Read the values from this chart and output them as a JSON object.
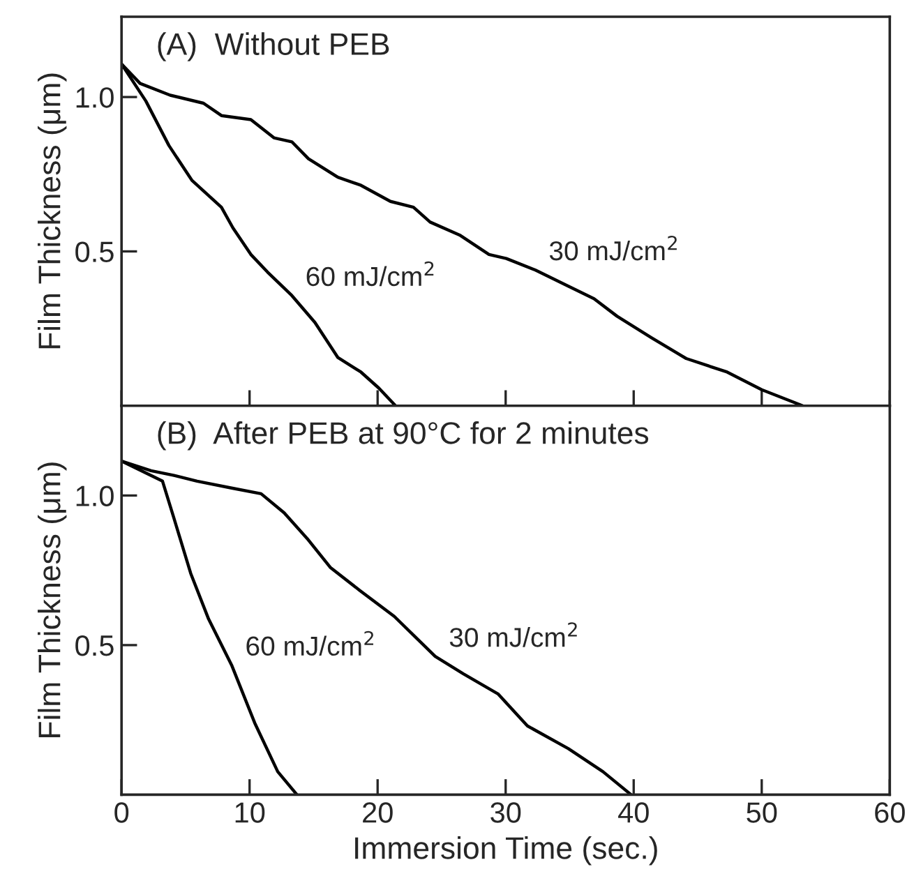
{
  "chart_data": [
    {
      "type": "line",
      "title": "(A)  Without PEB",
      "ylabel": "Film Thickness (μm)",
      "xlim": [
        0,
        60
      ],
      "ylim": [
        0,
        1.26
      ],
      "xticks": [
        0,
        10,
        20,
        30,
        40,
        50,
        60
      ],
      "yticks": [
        0.5,
        {
          "value": 1.0,
          "label": "1.0"
        }
      ],
      "tick_labels": "y",
      "grid": false,
      "legend": false,
      "series": [
        {
          "name": "30 mJ/cm$^{2}$",
          "color": "#000000",
          "x": [
            0,
            1.45,
            3.8,
            6.4,
            7.8,
            10.1,
            11.9,
            13.3,
            14.6,
            16.9,
            18.7,
            21.0,
            22.8,
            24.1,
            26.4,
            28.7,
            30.05,
            32.3,
            35.0,
            36.9,
            38.7,
            41.4,
            44.1,
            47.3,
            50.0,
            53.2
          ],
          "values": [
            1.107,
            1.044,
            1.006,
            0.98,
            0.94,
            0.927,
            0.868,
            0.855,
            0.8,
            0.74,
            0.714,
            0.662,
            0.643,
            0.595,
            0.553,
            0.49,
            0.477,
            0.44,
            0.385,
            0.347,
            0.29,
            0.22,
            0.153,
            0.109,
            0.052,
            0
          ]
        },
        {
          "name": "60 mJ/cm$^{2}$",
          "color": "#000000",
          "x": [
            0,
            1.9,
            3.7,
            5.5,
            7.8,
            8.7,
            10.1,
            11.4,
            13.3,
            15.1,
            16.9,
            18.7,
            20.1,
            21.4
          ],
          "values": [
            1.107,
            0.987,
            0.843,
            0.73,
            0.643,
            0.576,
            0.49,
            0.433,
            0.357,
            0.27,
            0.156,
            0.109,
            0.057,
            0
          ]
        }
      ]
    },
    {
      "type": "line",
      "title": "(B)  After PEB at 90°C for 2 minutes",
      "xlabel": "Immersion Time (sec.)",
      "ylabel": "Film Thickness (μm)",
      "xlim": [
        0,
        60
      ],
      "ylim": [
        0,
        1.3
      ],
      "xticks": [
        0,
        10,
        20,
        30,
        40,
        50,
        60
      ],
      "yticks": [
        0.5,
        {
          "value": 1.0,
          "label": "1.0"
        }
      ],
      "grid": false,
      "legend": false,
      "series": [
        {
          "name": "30 mJ/cm$^{2}$",
          "color": "#000000",
          "x": [
            0,
            2.3,
            4.1,
            5.9,
            8.6,
            10.9,
            12.7,
            14.5,
            16.3,
            18.6,
            21.3,
            24.5,
            26.7,
            29.4,
            31.7,
            34.9,
            37.6,
            39.8
          ],
          "values": [
            1.115,
            1.083,
            1.067,
            1.048,
            1.025,
            1.006,
            0.942,
            0.856,
            0.76,
            0.683,
            0.596,
            0.462,
            0.404,
            0.337,
            0.23,
            0.154,
            0.077,
            0
          ]
        },
        {
          "name": "60 mJ/cm$^{2}$",
          "color": "#000000",
          "x": [
            0,
            3.2,
            4.1,
            5.4,
            6.8,
            8.6,
            10.4,
            12.2,
            13.7
          ],
          "values": [
            1.115,
            1.048,
            0.923,
            0.74,
            0.587,
            0.433,
            0.24,
            0.077,
            0
          ]
        }
      ]
    }
  ]
}
